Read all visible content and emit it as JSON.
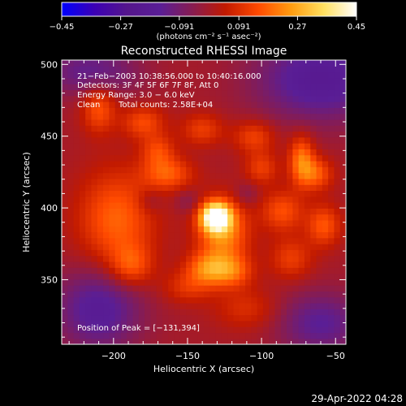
{
  "chart_data": {
    "type": "heatmap",
    "title": "Reconstructed RHESSI Image",
    "xlabel": "Heliocentric X (arcsec)",
    "ylabel": "Heliocentric Y (arcsec)",
    "xlim": [
      -235,
      -43
    ],
    "ylim": [
      305,
      503
    ],
    "x_ticks": [
      -200,
      -150,
      -100,
      -50
    ],
    "y_ticks": [
      350,
      400,
      450,
      500
    ],
    "tick_labels": {
      "x": [
        "−200",
        "−150",
        "−100",
        "−50"
      ],
      "y": [
        "350",
        "400",
        "450",
        "500"
      ]
    },
    "colorbar": {
      "range": [
        -0.45,
        0.45
      ],
      "ticks": [
        -0.45,
        -0.27,
        -0.091,
        0.091,
        0.27,
        0.45
      ],
      "tick_labels": [
        "−0.45",
        "−0.27",
        "−0.091",
        "0.091",
        "0.27",
        "0.45"
      ],
      "units_label": "(photons cm⁻² s⁻¹ asec⁻²)",
      "colors": [
        "#0000ff",
        "#3c00b4",
        "#55168c",
        "#5a1e96",
        "#881c50",
        "#c21a00",
        "#ff4a00",
        "#ff9c10",
        "#ffe060",
        "#ffffff"
      ]
    },
    "annotations": [
      "21−Feb−2003 10:38:56.000 to 10:40:16.000",
      "Detectors: 3F 4F 5F 6F 7F 8F, Att 0",
      "Energy Range: 3.0 − 6.0 keV",
      "Clean",
      "Total counts: 2.58E+04"
    ],
    "peak_label": "Position of Peak = [−131,394]",
    "peak": [
      -131,
      394
    ],
    "peak_value": 0.45,
    "sources": [
      {
        "x": -131,
        "y": 394,
        "amp": 0.45,
        "sx": 7,
        "sy": 7
      },
      {
        "x": -126,
        "y": 383,
        "amp": 0.23,
        "sx": 12,
        "sy": 16
      },
      {
        "x": -137,
        "y": 358,
        "amp": 0.18,
        "sx": 10,
        "sy": 8
      },
      {
        "x": -120,
        "y": 356,
        "amp": 0.16,
        "sx": 10,
        "sy": 8
      },
      {
        "x": -163,
        "y": 424,
        "amp": 0.16,
        "sx": 12,
        "sy": 8
      },
      {
        "x": -198,
        "y": 392,
        "amp": 0.18,
        "sx": 18,
        "sy": 24
      },
      {
        "x": -180,
        "y": 460,
        "amp": 0.14,
        "sx": 10,
        "sy": 8
      },
      {
        "x": -170,
        "y": 440,
        "amp": 0.13,
        "sx": 8,
        "sy": 8
      },
      {
        "x": -210,
        "y": 470,
        "amp": 0.16,
        "sx": 8,
        "sy": 12
      },
      {
        "x": -188,
        "y": 360,
        "amp": 0.14,
        "sx": 10,
        "sy": 10
      },
      {
        "x": -73,
        "y": 434,
        "amp": 0.2,
        "sx": 6,
        "sy": 12
      },
      {
        "x": -63,
        "y": 424,
        "amp": 0.16,
        "sx": 8,
        "sy": 8
      },
      {
        "x": -86,
        "y": 398,
        "amp": 0.15,
        "sx": 10,
        "sy": 10
      },
      {
        "x": -58,
        "y": 388,
        "amp": 0.16,
        "sx": 8,
        "sy": 10
      },
      {
        "x": -80,
        "y": 365,
        "amp": 0.12,
        "sx": 10,
        "sy": 10
      },
      {
        "x": -100,
        "y": 428,
        "amp": 0.12,
        "sx": 8,
        "sy": 8
      },
      {
        "x": -105,
        "y": 450,
        "amp": 0.13,
        "sx": 10,
        "sy": 8
      },
      {
        "x": -140,
        "y": 455,
        "amp": 0.12,
        "sx": 10,
        "sy": 8
      },
      {
        "x": -150,
        "y": 345,
        "amp": 0.1,
        "sx": 12,
        "sy": 8
      },
      {
        "x": -110,
        "y": 330,
        "amp": 0.09,
        "sx": 15,
        "sy": 10
      },
      {
        "x": -210,
        "y": 330,
        "amp": -0.18,
        "sx": 20,
        "sy": 20
      },
      {
        "x": -60,
        "y": 490,
        "amp": -0.2,
        "sx": 30,
        "sy": 20
      },
      {
        "x": -215,
        "y": 495,
        "amp": -0.14,
        "sx": 22,
        "sy": 12
      },
      {
        "x": -60,
        "y": 320,
        "amp": -0.15,
        "sx": 20,
        "sy": 15
      },
      {
        "x": -150,
        "y": 405,
        "amp": -0.06,
        "sx": 6,
        "sy": 6
      },
      {
        "x": -175,
        "y": 405,
        "amp": -0.06,
        "sx": 6,
        "sy": 6
      },
      {
        "x": -110,
        "y": 410,
        "amp": -0.06,
        "sx": 6,
        "sy": 6
      }
    ]
  },
  "footer": {
    "timestamp": "29-Apr-2022 04:28"
  }
}
